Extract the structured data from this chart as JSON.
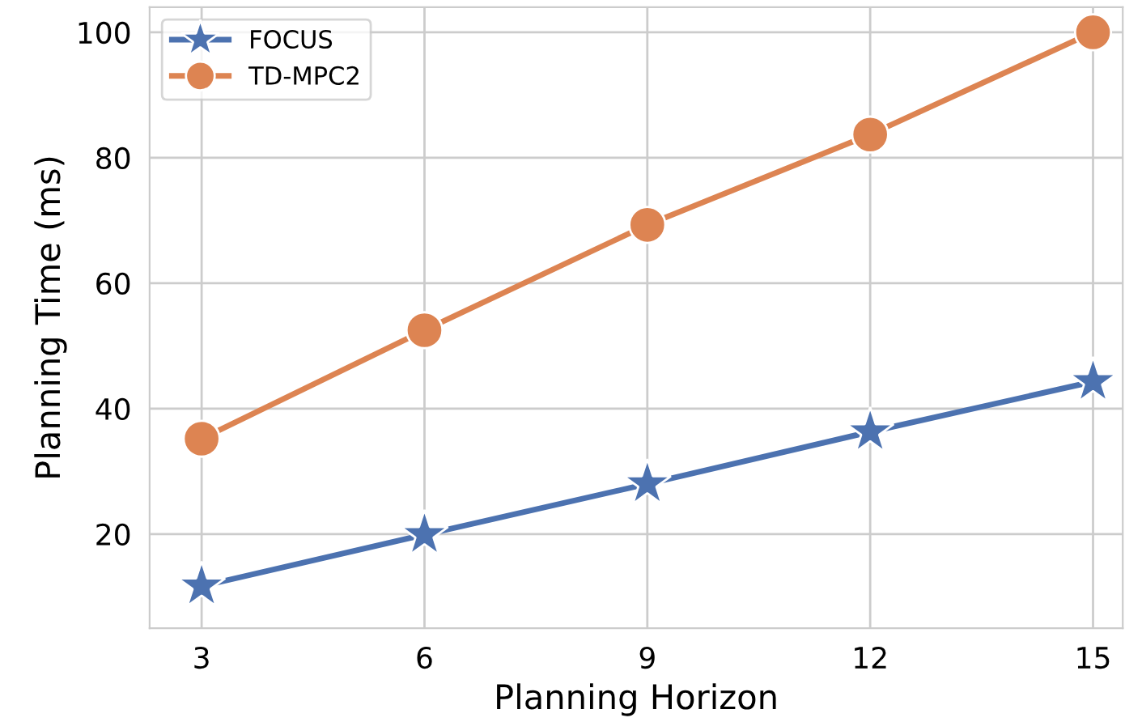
{
  "chart_data": {
    "type": "line",
    "xlabel": "Planning Horizon",
    "ylabel": "Planning Time (ms)",
    "x": [
      3,
      6,
      9,
      12,
      15
    ],
    "series": [
      {
        "name": "FOCUS",
        "color": "#4c72b0",
        "marker": "star",
        "values": [
          11.7,
          19.9,
          28.0,
          36.3,
          44.3
        ]
      },
      {
        "name": "TD-MPC2",
        "color": "#dd8452",
        "marker": "circle",
        "values": [
          35.2,
          52.5,
          69.3,
          83.7,
          100.0
        ]
      }
    ],
    "xlim": [
      2.3,
      15.4
    ],
    "xticks": [
      3,
      6,
      9,
      12,
      15
    ],
    "ylim": [
      5,
      104
    ],
    "yticks": [
      20,
      40,
      60,
      80,
      100
    ],
    "grid": true,
    "legend": "top left",
    "line_style": "solid"
  }
}
